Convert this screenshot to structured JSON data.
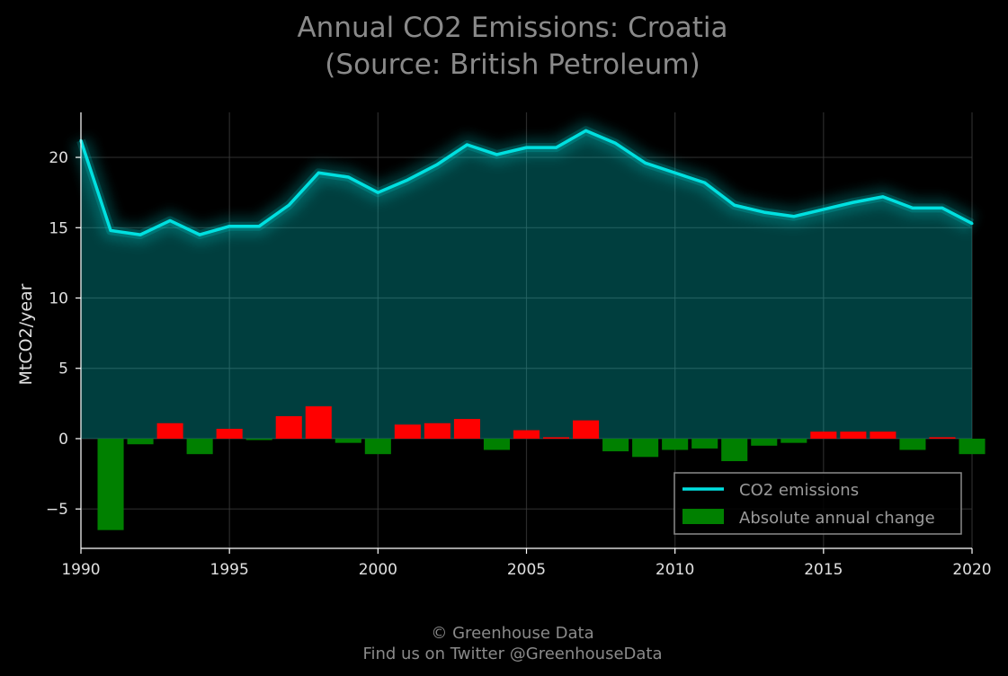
{
  "chart_data": {
    "type": "line",
    "title": "Annual CO2 Emissions: Croatia",
    "subtitle": "(Source: British Petroleum)",
    "ylabel": "MtCO2/year",
    "xlabel": "",
    "xlim": [
      1990,
      2020
    ],
    "ylim": [
      -7.8,
      23.2
    ],
    "x_ticks": [
      "1990",
      "1995",
      "2000",
      "2005",
      "2010",
      "2015",
      "2020"
    ],
    "y_ticks": [
      "−5",
      "0",
      "5",
      "10",
      "15",
      "20"
    ],
    "grid": true,
    "legend_position": "lower right",
    "years": [
      1990,
      1991,
      1992,
      1993,
      1994,
      1995,
      1996,
      1997,
      1998,
      1999,
      2000,
      2001,
      2002,
      2003,
      2004,
      2005,
      2006,
      2007,
      2008,
      2009,
      2010,
      2011,
      2012,
      2013,
      2014,
      2015,
      2016,
      2017,
      2018,
      2019,
      2020
    ],
    "series": [
      {
        "name": "CO2 emissions",
        "type": "line",
        "color": "#00e0e0",
        "values": [
          21.2,
          14.8,
          14.5,
          15.5,
          14.5,
          15.1,
          15.1,
          16.6,
          18.9,
          18.6,
          17.5,
          18.4,
          19.5,
          20.9,
          20.2,
          20.7,
          20.7,
          21.9,
          21.0,
          19.6,
          18.9,
          18.2,
          16.6,
          16.1,
          15.8,
          16.3,
          16.8,
          17.2,
          16.4,
          16.4,
          15.3
        ]
      },
      {
        "name": "Absolute annual change",
        "type": "bar",
        "positive_color": "#ff0000",
        "negative_color": "#008000",
        "values": [
          -6.5,
          -0.4,
          1.1,
          -1.1,
          0.7,
          -0.1,
          1.6,
          2.3,
          -0.3,
          -1.1,
          1.0,
          1.1,
          1.4,
          -0.8,
          0.6,
          0.1,
          1.3,
          -0.9,
          -1.3,
          -0.8,
          -0.7,
          -1.6,
          -0.5,
          -0.3,
          0.5,
          0.5,
          0.5,
          -0.8,
          0.1,
          -1.1
        ]
      }
    ]
  },
  "footer": {
    "line1": "© Greenhouse Data",
    "line2": "Find us on Twitter @GreenhouseData"
  }
}
